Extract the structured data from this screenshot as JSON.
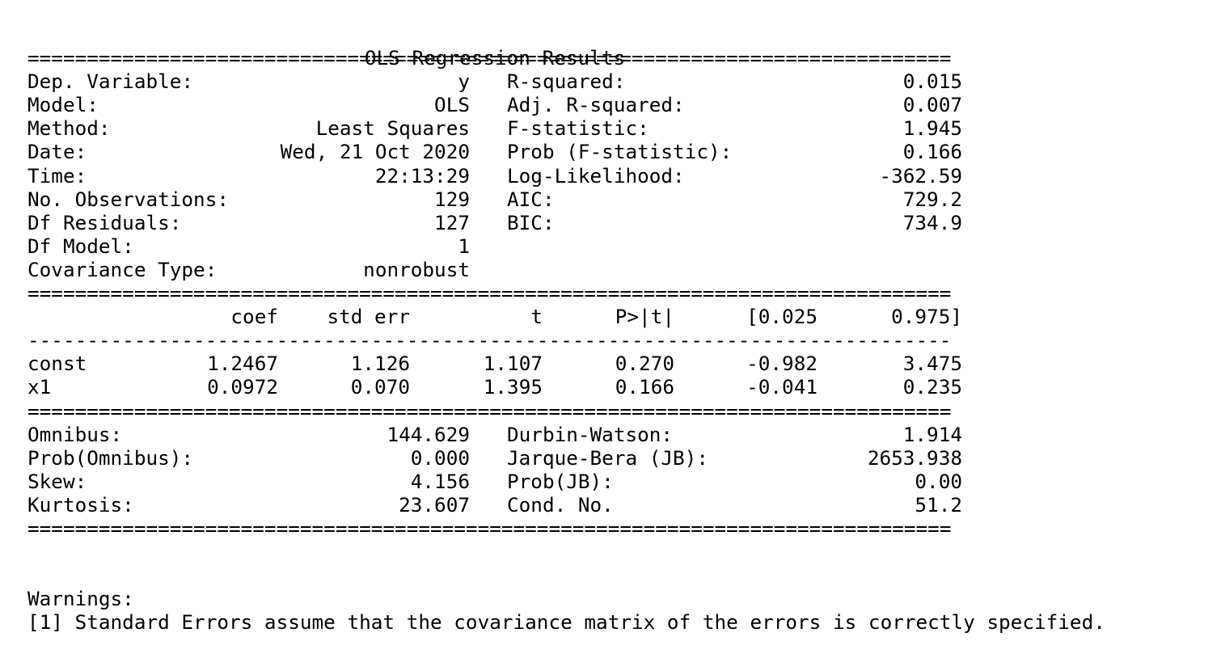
{
  "title": "OLS Regression Results",
  "rule_double": "==============================================================================",
  "rule_single": "------------------------------------------------------------------------------",
  "model_info": [
    {
      "label_left": "Dep. Variable:",
      "value_left": "y",
      "label_right": "R-squared:",
      "value_right": "0.015"
    },
    {
      "label_left": "Model:",
      "value_left": "OLS",
      "label_right": "Adj. R-squared:",
      "value_right": "0.007"
    },
    {
      "label_left": "Method:",
      "value_left": "Least Squares",
      "label_right": "F-statistic:",
      "value_right": "1.945"
    },
    {
      "label_left": "Date:",
      "value_left": "Wed, 21 Oct 2020",
      "label_right": "Prob (F-statistic):",
      "value_right": "0.166"
    },
    {
      "label_left": "Time:",
      "value_left": "22:13:29",
      "label_right": "Log-Likelihood:",
      "value_right": "-362.59"
    },
    {
      "label_left": "No. Observations:",
      "value_left": "129",
      "label_right": "AIC:",
      "value_right": "729.2"
    },
    {
      "label_left": "Df Residuals:",
      "value_left": "127",
      "label_right": "BIC:",
      "value_right": "734.9"
    },
    {
      "label_left": "Df Model:",
      "value_left": "1",
      "label_right": "",
      "value_right": ""
    },
    {
      "label_left": "Covariance Type:",
      "value_left": "nonrobust",
      "label_right": "",
      "value_right": ""
    }
  ],
  "coef_table": {
    "headers": [
      "coef",
      "std err",
      "t",
      "P>|t|",
      "[0.025",
      "0.975]"
    ],
    "rows": [
      {
        "name": "const",
        "values": [
          "1.2467",
          "1.126",
          "1.107",
          "0.270",
          "-0.982",
          "3.475"
        ]
      },
      {
        "name": "x1",
        "values": [
          "0.0972",
          "0.070",
          "1.395",
          "0.166",
          "-0.041",
          "0.235"
        ]
      }
    ]
  },
  "diagnostics": [
    {
      "label_left": "Omnibus:",
      "value_left": "144.629",
      "label_right": "Durbin-Watson:",
      "value_right": "1.914"
    },
    {
      "label_left": "Prob(Omnibus):",
      "value_left": "0.000",
      "label_right": "Jarque-Bera (JB):",
      "value_right": "2653.938"
    },
    {
      "label_left": "Skew:",
      "value_left": "4.156",
      "label_right": "Prob(JB):",
      "value_right": "0.00"
    },
    {
      "label_left": "Kurtosis:",
      "value_left": "23.607",
      "label_right": "Cond. No.",
      "value_right": "51.2"
    }
  ],
  "warnings": {
    "heading": "Warnings:",
    "items": [
      "[1] Standard Errors assume that the covariance matrix of the errors is correctly specified."
    ]
  }
}
